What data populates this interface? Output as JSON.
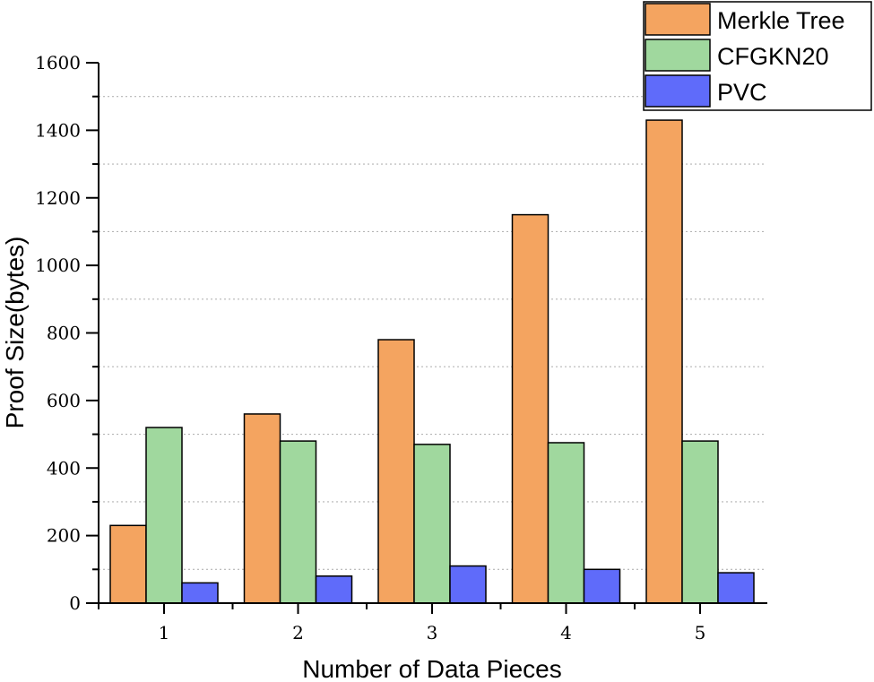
{
  "chart_data": {
    "type": "bar",
    "title": "",
    "xlabel": "Number of Data Pieces",
    "ylabel": "Proof Size(bytes)",
    "categories": [
      "1",
      "2",
      "3",
      "4",
      "5"
    ],
    "ylim": [
      0,
      1600
    ],
    "yticks": [
      "0",
      "200",
      "400",
      "600",
      "800",
      "1000",
      "1200",
      "1400",
      "1600"
    ],
    "grid": "horizontal-dotted",
    "legend_position": "top-right",
    "series": [
      {
        "name": "Merkle Tree",
        "color": "#F4A460",
        "values": [
          230,
          560,
          780,
          1150,
          1430
        ]
      },
      {
        "name": "CFGKN20",
        "color": "#A0D89E",
        "values": [
          520,
          480,
          470,
          475,
          480
        ]
      },
      {
        "name": "PVC",
        "color": "#5F6BFA",
        "values": [
          60,
          80,
          110,
          100,
          90
        ]
      }
    ]
  }
}
